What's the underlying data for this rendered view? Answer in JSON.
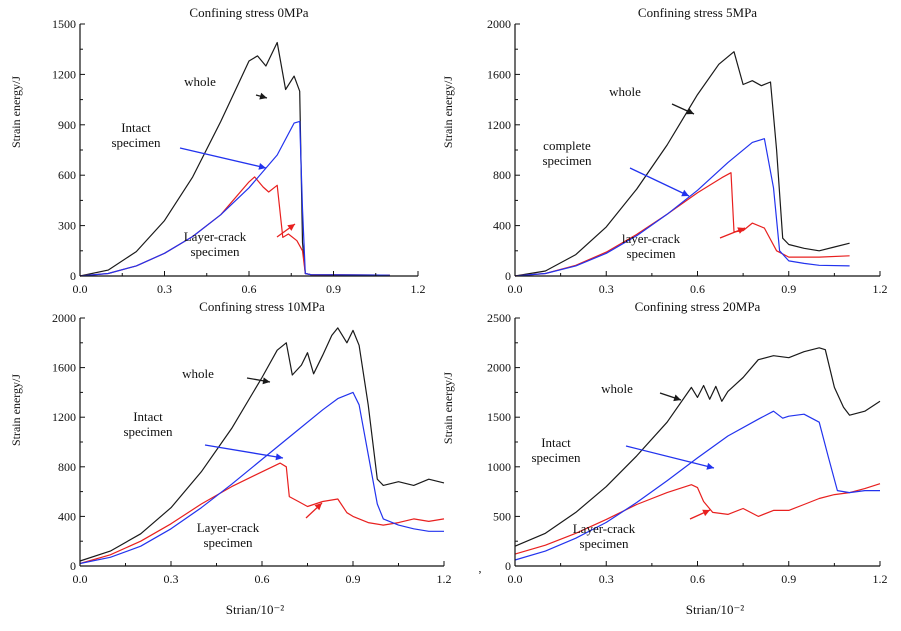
{
  "colors": {
    "whole": "#1a1a1a",
    "intact": "#2233ee",
    "layer": "#e8201f",
    "axis": "#111111"
  },
  "figure": {
    "xlabel": "Strian/10⁻²",
    "stray_mark": ","
  },
  "chart_data": [
    {
      "type": "line",
      "title": "Confining stress 0MPa",
      "ylabel": "Strain energy/J",
      "xlim": [
        0,
        1.2
      ],
      "ylim": [
        0,
        1500
      ],
      "xticks": [
        0.0,
        0.3,
        0.6,
        0.9,
        1.2
      ],
      "xticklabels": [
        "0.0",
        "0.3",
        "0.6",
        "0.9",
        "1.2"
      ],
      "yticks": [
        0,
        300,
        600,
        900,
        1200,
        1500
      ],
      "yticklabels": [
        "0",
        "300",
        "600",
        "900",
        "1200",
        "1500"
      ],
      "grid": false,
      "series": [
        {
          "key": "whole",
          "x": [
            0,
            0.1,
            0.2,
            0.3,
            0.4,
            0.5,
            0.55,
            0.6,
            0.63,
            0.66,
            0.7,
            0.73,
            0.76,
            0.78,
            0.79,
            0.8,
            0.82,
            1.1
          ],
          "values": [
            0,
            35,
            145,
            330,
            590,
            920,
            1100,
            1280,
            1310,
            1250,
            1390,
            1110,
            1190,
            1100,
            200,
            15,
            8,
            5
          ]
        },
        {
          "key": "intact",
          "x": [
            0,
            0.1,
            0.2,
            0.3,
            0.4,
            0.5,
            0.6,
            0.7,
            0.76,
            0.78,
            0.79,
            0.8,
            0.82,
            1.1
          ],
          "values": [
            0,
            15,
            60,
            135,
            235,
            365,
            525,
            720,
            910,
            920,
            400,
            15,
            8,
            5
          ]
        },
        {
          "key": "layer",
          "x": [
            0,
            0.1,
            0.2,
            0.3,
            0.4,
            0.5,
            0.6,
            0.62,
            0.65,
            0.67,
            0.7,
            0.72,
            0.74,
            0.77,
            0.79,
            0.8,
            0.82,
            1.1
          ],
          "values": [
            0,
            15,
            60,
            135,
            235,
            365,
            560,
            590,
            530,
            500,
            540,
            230,
            250,
            210,
            150,
            15,
            8,
            5
          ]
        }
      ],
      "annotations": [
        {
          "label": [
            "whole"
          ],
          "points_to": "whole",
          "at": [
            0.6,
            1140
          ]
        },
        {
          "label": [
            "Intact",
            "specimen"
          ],
          "points_to": "intact",
          "at": [
            0.7,
            640
          ]
        },
        {
          "label": [
            "Layer-crack",
            "specimen"
          ],
          "points_to": "layer",
          "at": [
            0.64,
            250
          ]
        }
      ]
    },
    {
      "type": "line",
      "title": "Confining stress 5MPa",
      "ylabel": "Strain energy/J",
      "xlim": [
        0,
        1.2
      ],
      "ylim": [
        0,
        2000
      ],
      "xticks": [
        0.0,
        0.3,
        0.6,
        0.9,
        1.2
      ],
      "xticklabels": [
        "0.0",
        "0.3",
        "0.6",
        "0.9",
        "1.2"
      ],
      "yticks": [
        0,
        400,
        800,
        1200,
        1600,
        2000
      ],
      "yticklabels": [
        "0",
        "400",
        "800",
        "1200",
        "1600",
        "2000"
      ],
      "grid": false,
      "series": [
        {
          "key": "whole",
          "x": [
            0,
            0.1,
            0.2,
            0.3,
            0.4,
            0.5,
            0.6,
            0.67,
            0.72,
            0.75,
            0.78,
            0.81,
            0.84,
            0.86,
            0.88,
            0.9,
            0.95,
            1.0,
            1.05,
            1.1
          ],
          "values": [
            0,
            40,
            170,
            390,
            690,
            1040,
            1440,
            1680,
            1780,
            1520,
            1550,
            1510,
            1540,
            1000,
            300,
            250,
            220,
            200,
            230,
            260
          ]
        },
        {
          "key": "intact",
          "x": [
            0,
            0.1,
            0.2,
            0.3,
            0.4,
            0.5,
            0.6,
            0.7,
            0.78,
            0.82,
            0.85,
            0.87,
            0.9,
            0.95,
            1.0,
            1.1
          ],
          "values": [
            0,
            20,
            80,
            180,
            320,
            490,
            680,
            900,
            1060,
            1090,
            700,
            200,
            120,
            100,
            85,
            80
          ]
        },
        {
          "key": "layer",
          "x": [
            0,
            0.1,
            0.2,
            0.3,
            0.4,
            0.5,
            0.6,
            0.68,
            0.71,
            0.72,
            0.75,
            0.78,
            0.82,
            0.86,
            0.9,
            1.0,
            1.1
          ],
          "values": [
            0,
            20,
            85,
            190,
            330,
            490,
            660,
            780,
            820,
            350,
            360,
            420,
            380,
            200,
            150,
            150,
            160
          ]
        }
      ],
      "annotations": [
        {
          "label": [
            "whole"
          ],
          "points_to": "whole",
          "at": [
            0.65,
            1420
          ]
        },
        {
          "label": [
            "complete",
            "specimen"
          ],
          "points_to": "complete",
          "at": [
            0.7,
            700
          ]
        },
        {
          "label": [
            "layer-crack",
            "specimen"
          ],
          "points_to": "layer",
          "at": [
            0.8,
            380
          ]
        }
      ]
    },
    {
      "type": "line",
      "title": "Confining stress 10MPa",
      "ylabel": "Strain energy/J",
      "xlim": [
        0,
        1.2
      ],
      "ylim": [
        0,
        2000
      ],
      "xticks": [
        0.0,
        0.3,
        0.6,
        0.9,
        1.2
      ],
      "xticklabels": [
        "0.0",
        "0.3",
        "0.6",
        "0.9",
        "1.2"
      ],
      "yticks": [
        0,
        400,
        800,
        1200,
        1600,
        2000
      ],
      "yticklabels": [
        "0",
        "400",
        "800",
        "1200",
        "1600",
        "2000"
      ],
      "grid": false,
      "series": [
        {
          "key": "whole",
          "x": [
            0,
            0.1,
            0.2,
            0.3,
            0.4,
            0.5,
            0.6,
            0.65,
            0.68,
            0.7,
            0.73,
            0.75,
            0.77,
            0.8,
            0.83,
            0.85,
            0.88,
            0.9,
            0.92,
            0.95,
            0.98,
            1.0,
            1.05,
            1.1,
            1.15,
            1.2
          ],
          "values": [
            40,
            120,
            260,
            470,
            760,
            1110,
            1520,
            1740,
            1800,
            1540,
            1620,
            1720,
            1550,
            1700,
            1860,
            1920,
            1800,
            1900,
            1780,
            1300,
            700,
            650,
            680,
            650,
            700,
            670
          ]
        },
        {
          "key": "intact",
          "x": [
            0,
            0.1,
            0.2,
            0.3,
            0.4,
            0.5,
            0.6,
            0.7,
            0.8,
            0.85,
            0.9,
            0.92,
            0.95,
            0.98,
            1.0,
            1.05,
            1.1,
            1.15,
            1.2
          ],
          "values": [
            20,
            70,
            160,
            300,
            470,
            660,
            860,
            1060,
            1260,
            1350,
            1400,
            1300,
            900,
            500,
            380,
            330,
            300,
            280,
            280
          ]
        },
        {
          "key": "layer",
          "x": [
            0,
            0.1,
            0.2,
            0.3,
            0.4,
            0.5,
            0.6,
            0.66,
            0.68,
            0.69,
            0.72,
            0.75,
            0.8,
            0.85,
            0.88,
            0.9,
            0.95,
            1.0,
            1.05,
            1.1,
            1.15,
            1.2
          ],
          "values": [
            20,
            90,
            200,
            340,
            500,
            640,
            760,
            830,
            800,
            560,
            520,
            480,
            520,
            540,
            430,
            400,
            350,
            330,
            350,
            380,
            360,
            380
          ]
        }
      ],
      "annotations": [
        {
          "label": [
            "whole"
          ],
          "points_to": "whole",
          "at": [
            0.61,
            1550
          ]
        },
        {
          "label": [
            "Intact",
            "specimen"
          ],
          "points_to": "intact",
          "at": [
            0.72,
            850
          ]
        },
        {
          "label": [
            "Layer-crack",
            "specimen"
          ],
          "points_to": "layer",
          "at": [
            0.85,
            450
          ]
        }
      ]
    },
    {
      "type": "line",
      "title": "Confining stress 20MPa",
      "ylabel": "Strain energy/J",
      "xlim": [
        0,
        1.2
      ],
      "ylim": [
        0,
        2500
      ],
      "xticks": [
        0.0,
        0.3,
        0.6,
        0.9,
        1.2
      ],
      "xticklabels": [
        "0.0",
        "0.3",
        "0.6",
        "0.9",
        "1.2"
      ],
      "yticks": [
        0,
        500,
        1000,
        1500,
        2000,
        2500
      ],
      "yticklabels": [
        "0",
        "500",
        "1000",
        "1500",
        "2000",
        "2500"
      ],
      "grid": false,
      "series": [
        {
          "key": "whole",
          "x": [
            0,
            0.1,
            0.2,
            0.3,
            0.4,
            0.5,
            0.58,
            0.6,
            0.62,
            0.64,
            0.66,
            0.68,
            0.7,
            0.75,
            0.8,
            0.85,
            0.9,
            0.95,
            1.0,
            1.02,
            1.05,
            1.08,
            1.1,
            1.15,
            1.2
          ],
          "values": [
            200,
            330,
            540,
            800,
            1110,
            1450,
            1800,
            1700,
            1820,
            1680,
            1810,
            1660,
            1760,
            1900,
            2080,
            2120,
            2100,
            2160,
            2200,
            2180,
            1800,
            1600,
            1520,
            1560,
            1660
          ]
        },
        {
          "key": "intact",
          "x": [
            0,
            0.1,
            0.2,
            0.3,
            0.4,
            0.5,
            0.6,
            0.7,
            0.8,
            0.85,
            0.88,
            0.9,
            0.95,
            1.0,
            1.03,
            1.06,
            1.1,
            1.15,
            1.2
          ],
          "values": [
            60,
            150,
            280,
            440,
            640,
            860,
            1090,
            1310,
            1480,
            1560,
            1490,
            1510,
            1530,
            1450,
            1100,
            760,
            740,
            760,
            760
          ]
        },
        {
          "key": "layer",
          "x": [
            0,
            0.1,
            0.2,
            0.3,
            0.4,
            0.5,
            0.58,
            0.6,
            0.62,
            0.65,
            0.7,
            0.75,
            0.8,
            0.85,
            0.9,
            0.95,
            1.0,
            1.05,
            1.1,
            1.15,
            1.2
          ],
          "values": [
            120,
            210,
            330,
            470,
            620,
            740,
            820,
            790,
            650,
            540,
            520,
            580,
            500,
            560,
            560,
            620,
            680,
            720,
            740,
            780,
            830
          ]
        }
      ],
      "annotations": [
        {
          "label": [
            "whole"
          ],
          "points_to": "whole",
          "at": [
            0.5,
            1700
          ]
        },
        {
          "label": [
            "Intact",
            "specimen"
          ],
          "points_to": "intact",
          "at": [
            0.65,
            1020
          ]
        },
        {
          "label": [
            "Layer-crack",
            "specimen"
          ],
          "points_to": "layer",
          "at": [
            0.65,
            850
          ]
        }
      ]
    }
  ]
}
